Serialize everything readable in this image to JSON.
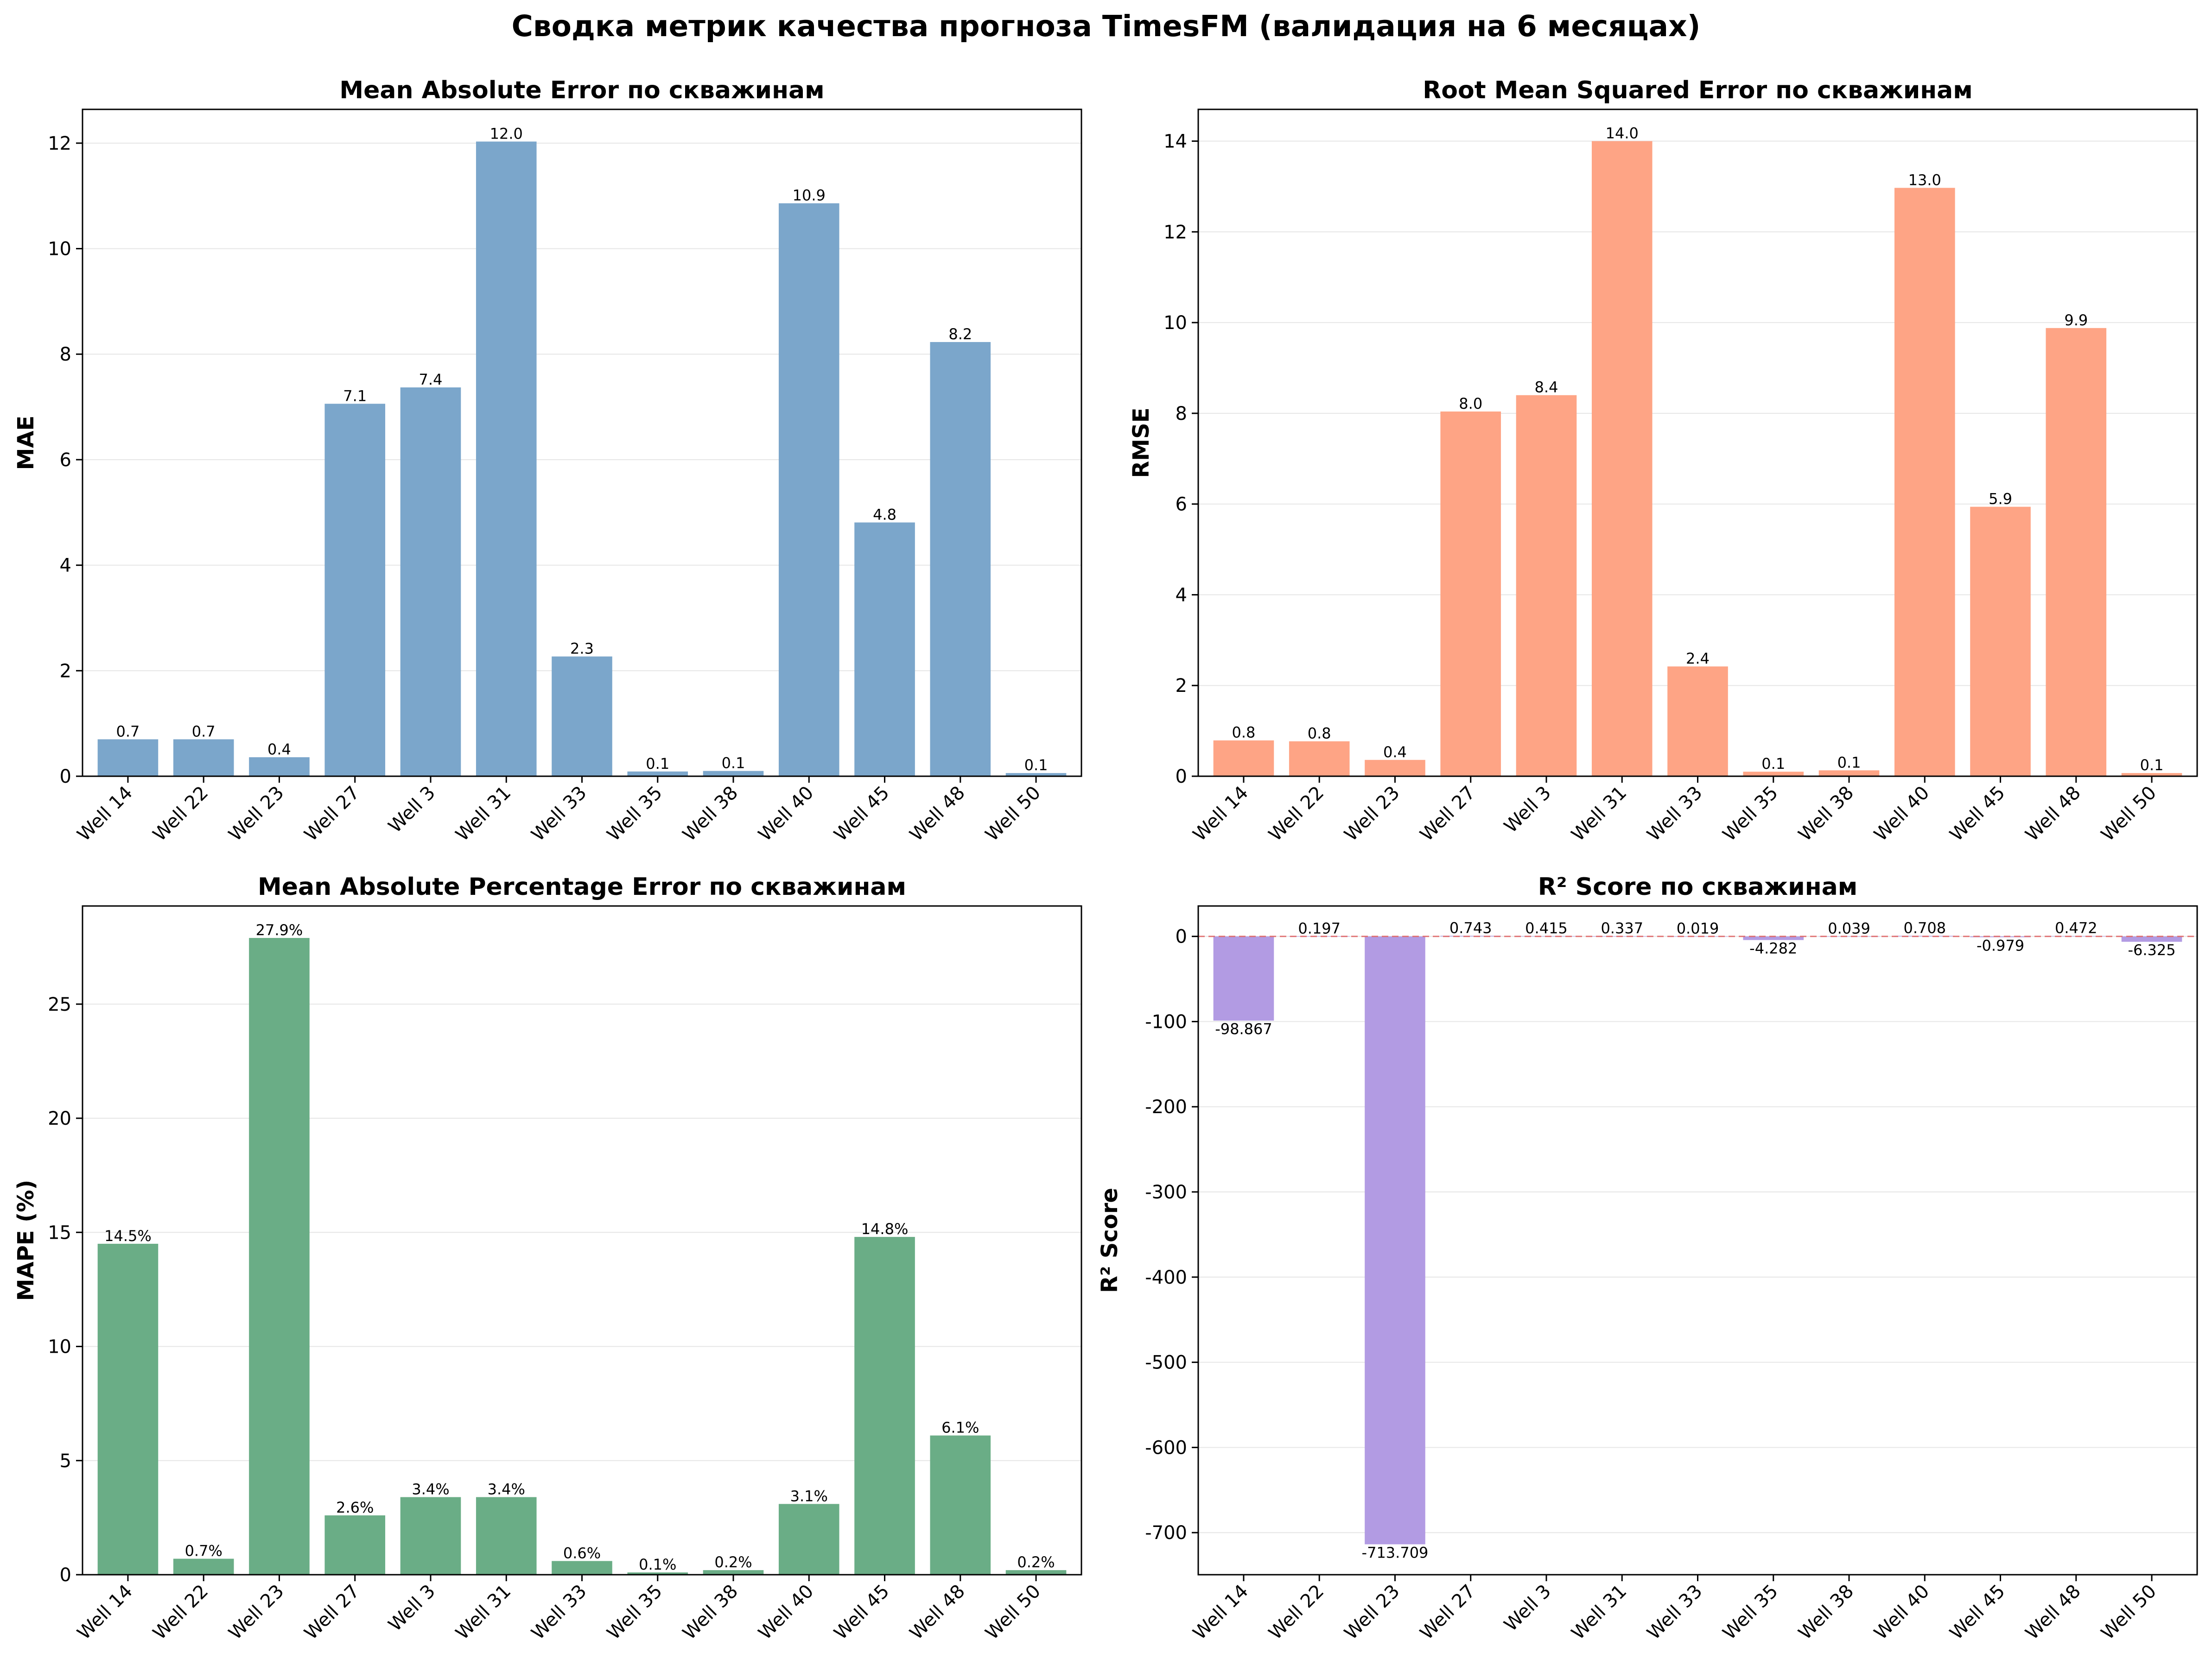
{
  "suptitle": "Сводка метрик качества прогноза TimesFM (валидация на 6 месяцах)",
  "chart_data": [
    {
      "type": "bar",
      "title": "Mean Absolute Error по скважинам",
      "xlabel": "",
      "ylabel": "MAE",
      "categories": [
        "Well 14",
        "Well 22",
        "Well 23",
        "Well 27",
        "Well 3",
        "Well 31",
        "Well 33",
        "Well 35",
        "Well 38",
        "Well 40",
        "Well 45",
        "Well 48",
        "Well 50"
      ],
      "values": [
        0.7,
        0.7,
        0.36,
        7.06,
        7.37,
        12.03,
        2.27,
        0.09,
        0.1,
        10.86,
        4.81,
        8.23,
        0.06
      ],
      "labels": [
        "0.7",
        "0.7",
        "0.4",
        "7.1",
        "7.4",
        "12.0",
        "2.3",
        "0.1",
        "0.1",
        "10.9",
        "4.8",
        "8.2",
        "0.1"
      ],
      "ylim": [
        0,
        12.64
      ],
      "yticks": [
        0,
        2,
        4,
        6,
        8,
        10,
        12
      ],
      "color": "#7ba6cb",
      "grid": "y",
      "legend": "none"
    },
    {
      "type": "bar",
      "title": "Root Mean Squared Error по скважинам",
      "xlabel": "",
      "ylabel": "RMSE",
      "categories": [
        "Well 14",
        "Well 22",
        "Well 23",
        "Well 27",
        "Well 3",
        "Well 31",
        "Well 33",
        "Well 35",
        "Well 38",
        "Well 40",
        "Well 45",
        "Well 48",
        "Well 50"
      ],
      "values": [
        0.79,
        0.77,
        0.36,
        8.04,
        8.4,
        14.0,
        2.42,
        0.1,
        0.13,
        12.97,
        5.94,
        9.88,
        0.07
      ],
      "labels": [
        "0.8",
        "0.8",
        "0.4",
        "8.0",
        "8.4",
        "14.0",
        "2.4",
        "0.1",
        "0.1",
        "13.0",
        "5.9",
        "9.9",
        "0.1"
      ],
      "ylim": [
        0,
        14.7
      ],
      "yticks": [
        0,
        2,
        4,
        6,
        8,
        10,
        12,
        14
      ],
      "color": "#fea485",
      "grid": "y",
      "legend": "none"
    },
    {
      "type": "bar",
      "title": "Mean Absolute Percentage Error по скважинам",
      "xlabel": "",
      "ylabel": "MAPE (%)",
      "categories": [
        "Well 14",
        "Well 22",
        "Well 23",
        "Well 27",
        "Well 3",
        "Well 31",
        "Well 33",
        "Well 35",
        "Well 38",
        "Well 40",
        "Well 45",
        "Well 48",
        "Well 50"
      ],
      "values": [
        14.5,
        0.7,
        27.9,
        2.6,
        3.4,
        3.4,
        0.6,
        0.1,
        0.2,
        3.1,
        14.8,
        6.1,
        0.2
      ],
      "labels": [
        "14.5%",
        "0.7%",
        "27.9%",
        "2.6%",
        "3.4%",
        "3.4%",
        "0.6%",
        "0.1%",
        "0.2%",
        "3.1%",
        "14.8%",
        "6.1%",
        "0.2%"
      ],
      "ylim": [
        0,
        29.3
      ],
      "yticks": [
        0,
        5,
        10,
        15,
        20,
        25
      ],
      "color": "#6aad86",
      "grid": "y",
      "legend": "none"
    },
    {
      "type": "bar",
      "title": "R² Score по скважинам",
      "xlabel": "",
      "ylabel": "R² Score",
      "categories": [
        "Well 14",
        "Well 22",
        "Well 23",
        "Well 27",
        "Well 3",
        "Well 31",
        "Well 33",
        "Well 35",
        "Well 38",
        "Well 40",
        "Well 45",
        "Well 48",
        "Well 50"
      ],
      "values": [
        -98.867,
        0.197,
        -713.709,
        0.743,
        0.415,
        0.337,
        0.019,
        -4.282,
        0.039,
        0.708,
        -0.979,
        0.472,
        -6.325
      ],
      "labels": [
        "-98.867",
        "0.197",
        "-713.709",
        "0.743",
        "0.415",
        "0.337",
        "0.019",
        "-4.282",
        "0.039",
        "0.708",
        "-0.979",
        "0.472",
        "-6.325"
      ],
      "ylim": [
        -749.4,
        35.7
      ],
      "yticks": [
        -700,
        -600,
        -500,
        -400,
        -300,
        -200,
        -100,
        0
      ],
      "color": "#b29be3",
      "reference_line": {
        "y": 0,
        "style": "dashed",
        "color": "#e06666"
      },
      "grid": "y",
      "legend": "none"
    }
  ]
}
